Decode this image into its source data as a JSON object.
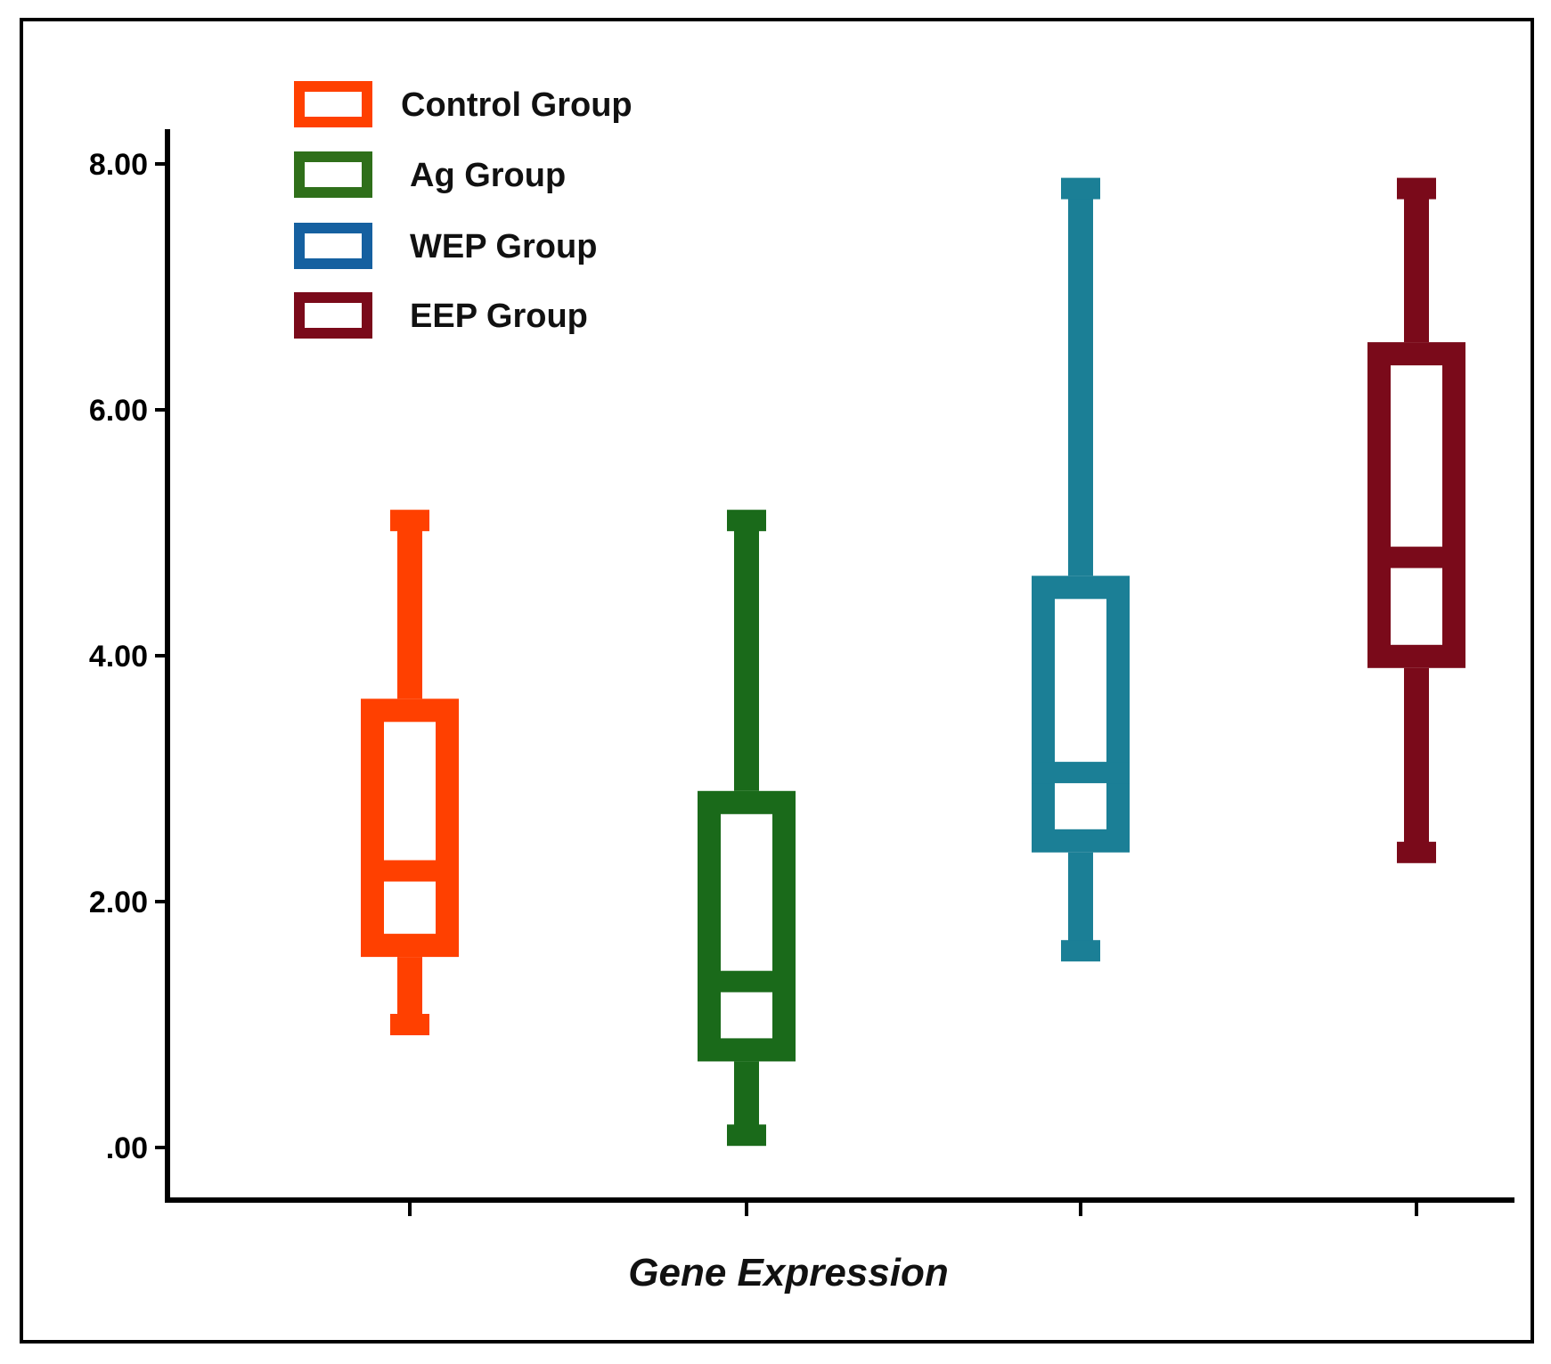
{
  "chart_data": {
    "type": "box",
    "xlabel": "Gene Expression",
    "ylabel": "",
    "ylim": [
      -0.1,
      8.3
    ],
    "yticks": [
      0,
      2,
      4,
      6,
      8
    ],
    "ytick_labels": [
      ".00",
      "2.00",
      "4.00",
      "6.00",
      "8.00"
    ],
    "legend_position": "top-left",
    "series": [
      {
        "name": "Control Group",
        "color": "#ff4000",
        "min": 1.0,
        "q1": 1.55,
        "median": 2.25,
        "q3": 3.65,
        "max": 5.1
      },
      {
        "name": "Ag Group",
        "color": "#1a6a1a",
        "min": 0.1,
        "q1": 0.7,
        "median": 1.35,
        "q3": 2.9,
        "max": 5.1
      },
      {
        "name": "WEP Group",
        "color": "#1b7f96",
        "min": 1.6,
        "q1": 2.4,
        "median": 3.05,
        "q3": 4.65,
        "max": 7.8
      },
      {
        "name": "EEP Group",
        "color": "#7a0a1a",
        "min": 2.4,
        "q1": 3.9,
        "median": 4.8,
        "q3": 6.55,
        "max": 7.8
      }
    ]
  },
  "legend": {
    "items": [
      {
        "label": "Control Group",
        "color": "#ff4000"
      },
      {
        "label": "Ag Group",
        "color": "#2f6f1a"
      },
      {
        "label": "WEP Group",
        "color": "#1560a0"
      },
      {
        "label": "EEP Group",
        "color": "#7a0a1a"
      }
    ]
  }
}
